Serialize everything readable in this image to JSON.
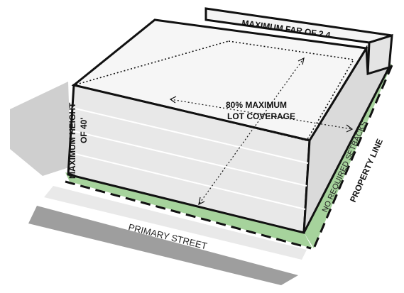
{
  "labels": {
    "max_far": "MAXIMUM FAR OF 2.4",
    "max_height_line1": "MAXIMUM HEIGHT",
    "max_height_line2": "OF 40'",
    "lot_coverage_line1": "80% MAXIMUM",
    "lot_coverage_line2": "LOT COVERAGE",
    "setbacks": "NO REQUIRED SETBACKS",
    "property_line": "PROPERTY LINE",
    "street": "PRIMARY STREET"
  },
  "colors": {
    "lot_green": "#a6d39c",
    "road_gray": "#9e9e9e",
    "shadow_gray": "#cfcfcf",
    "massing_top": "#f4f4f4",
    "massing_side": "#e4e4e4",
    "outline": "#111111"
  }
}
